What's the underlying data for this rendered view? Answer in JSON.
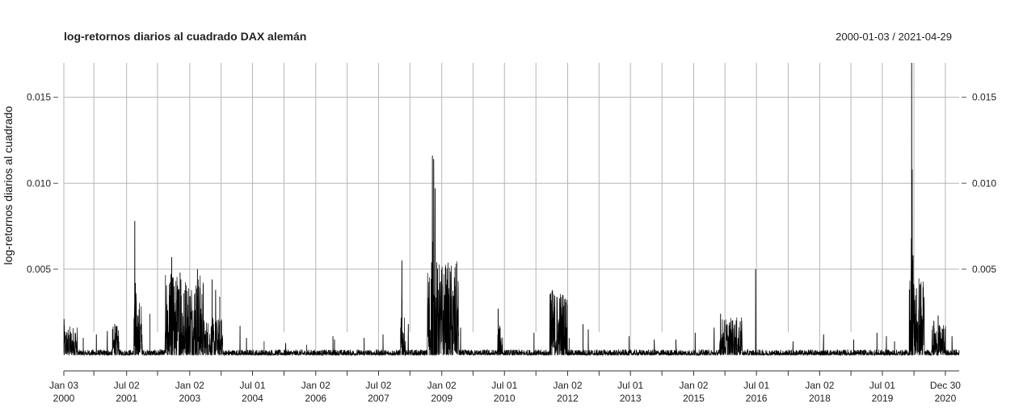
{
  "chart_data": {
    "type": "line",
    "title": "log-retornos diarios al cuadrado DAX alemán",
    "date_range": "2000-01-03 / 2021-04-29",
    "ylabel": "log-retornos diarios al cuadrado",
    "xlabel": "",
    "ylim": [
      -0.0004,
      0.017
    ],
    "xlim": [
      "2000-01-03",
      "2021-04-29"
    ],
    "grid": true,
    "y_ticks": [
      {
        "value": 0.005,
        "label": "0.005"
      },
      {
        "value": 0.01,
        "label": "0.010"
      },
      {
        "value": 0.015,
        "label": "0.015"
      }
    ],
    "x_ticks": [
      {
        "date": "2000-01-03",
        "line1": "Jan 03",
        "line2": "2000"
      },
      {
        "date": "2000-09-20",
        "line1": "",
        "line2": ""
      },
      {
        "date": "2001-07-02",
        "line1": "Jul 02",
        "line2": "2001"
      },
      {
        "date": "2002-03-28",
        "line1": "",
        "line2": ""
      },
      {
        "date": "2003-01-02",
        "line1": "Jan 02",
        "line2": "2003"
      },
      {
        "date": "2003-10-02",
        "line1": "",
        "line2": ""
      },
      {
        "date": "2004-07-01",
        "line1": "Jul 01",
        "line2": "2004"
      },
      {
        "date": "2005-04-01",
        "line1": "",
        "line2": ""
      },
      {
        "date": "2006-01-02",
        "line1": "Jan 02",
        "line2": "2006"
      },
      {
        "date": "2006-10-02",
        "line1": "",
        "line2": ""
      },
      {
        "date": "2007-07-02",
        "line1": "Jul 02",
        "line2": "2007"
      },
      {
        "date": "2008-03-31",
        "line1": "",
        "line2": ""
      },
      {
        "date": "2009-01-02",
        "line1": "Jan 02",
        "line2": "2009"
      },
      {
        "date": "2009-10-01",
        "line1": "",
        "line2": ""
      },
      {
        "date": "2010-07-01",
        "line1": "Jul 01",
        "line2": "2010"
      },
      {
        "date": "2011-04-01",
        "line1": "",
        "line2": ""
      },
      {
        "date": "2012-01-02",
        "line1": "Jan 02",
        "line2": "2012"
      },
      {
        "date": "2012-10-01",
        "line1": "",
        "line2": ""
      },
      {
        "date": "2013-07-01",
        "line1": "Jul 01",
        "line2": "2013"
      },
      {
        "date": "2014-04-01",
        "line1": "",
        "line2": ""
      },
      {
        "date": "2015-01-02",
        "line1": "Jan 02",
        "line2": "2015"
      },
      {
        "date": "2015-10-01",
        "line1": "",
        "line2": ""
      },
      {
        "date": "2016-07-01",
        "line1": "Jul 01",
        "line2": "2016"
      },
      {
        "date": "2017-04-03",
        "line1": "",
        "line2": ""
      },
      {
        "date": "2018-01-02",
        "line1": "Jan 02",
        "line2": "2018"
      },
      {
        "date": "2018-10-01",
        "line1": "",
        "line2": ""
      },
      {
        "date": "2019-07-01",
        "line1": "Jul 01",
        "line2": "2019"
      },
      {
        "date": "2020-04-01",
        "line1": "",
        "line2": ""
      },
      {
        "date": "2020-12-30",
        "line1": "Dec 30",
        "line2": "2020"
      }
    ],
    "series": [
      {
        "color": "#000000",
        "baseline": 0.00015,
        "peaks": [
          {
            "date": "2000-01-05",
            "value": 0.0021
          },
          {
            "date": "2000-02-15",
            "value": 0.0011
          },
          {
            "date": "2000-04-10",
            "value": 0.0013
          },
          {
            "date": "2000-06-20",
            "value": 0.001
          },
          {
            "date": "2000-10-12",
            "value": 0.0012
          },
          {
            "date": "2001-01-15",
            "value": 0.0014
          },
          {
            "date": "2001-03-20",
            "value": 0.0018
          },
          {
            "date": "2001-04-05",
            "value": 0.0015
          },
          {
            "date": "2001-09-11",
            "value": 0.0078
          },
          {
            "date": "2001-09-17",
            "value": 0.0042
          },
          {
            "date": "2001-09-21",
            "value": 0.0036
          },
          {
            "date": "2001-10-15",
            "value": 0.0012
          },
          {
            "date": "2002-01-20",
            "value": 0.0024
          },
          {
            "date": "2002-06-24",
            "value": 0.0026
          },
          {
            "date": "2002-07-22",
            "value": 0.0047
          },
          {
            "date": "2002-07-29",
            "value": 0.0057
          },
          {
            "date": "2002-08-06",
            "value": 0.0045
          },
          {
            "date": "2002-08-20",
            "value": 0.004
          },
          {
            "date": "2002-09-05",
            "value": 0.0032
          },
          {
            "date": "2002-09-30",
            "value": 0.0038
          },
          {
            "date": "2002-10-10",
            "value": 0.0048
          },
          {
            "date": "2002-10-17",
            "value": 0.0044
          },
          {
            "date": "2002-11-10",
            "value": 0.0036
          },
          {
            "date": "2003-01-20",
            "value": 0.0026
          },
          {
            "date": "2003-02-15",
            "value": 0.0036
          },
          {
            "date": "2003-03-10",
            "value": 0.005
          },
          {
            "date": "2003-03-20",
            "value": 0.004
          },
          {
            "date": "2003-04-10",
            "value": 0.0024
          },
          {
            "date": "2003-05-01",
            "value": 0.0019
          },
          {
            "date": "2003-07-15",
            "value": 0.0044
          },
          {
            "date": "2003-08-15",
            "value": 0.0038
          },
          {
            "date": "2003-09-20",
            "value": 0.0034
          },
          {
            "date": "2003-10-01",
            "value": 0.002
          },
          {
            "date": "2004-03-15",
            "value": 0.0017
          },
          {
            "date": "2004-05-10",
            "value": 0.001
          },
          {
            "date": "2004-10-10",
            "value": 0.0008
          },
          {
            "date": "2005-04-15",
            "value": 0.0007
          },
          {
            "date": "2005-10-15",
            "value": 0.0006
          },
          {
            "date": "2006-06-01",
            "value": 0.0011
          },
          {
            "date": "2006-06-14",
            "value": 0.0009
          },
          {
            "date": "2007-02-27",
            "value": 0.001
          },
          {
            "date": "2007-08-10",
            "value": 0.0012
          },
          {
            "date": "2008-01-21",
            "value": 0.0055
          },
          {
            "date": "2008-01-22",
            "value": 0.0033
          },
          {
            "date": "2008-03-17",
            "value": 0.0018
          },
          {
            "date": "2008-09-15",
            "value": 0.003
          },
          {
            "date": "2008-10-06",
            "value": 0.0054
          },
          {
            "date": "2008-10-13",
            "value": 0.0116
          },
          {
            "date": "2008-10-16",
            "value": 0.0066
          },
          {
            "date": "2008-10-24",
            "value": 0.0114
          },
          {
            "date": "2008-11-06",
            "value": 0.0097
          },
          {
            "date": "2008-11-20",
            "value": 0.0054
          },
          {
            "date": "2008-12-05",
            "value": 0.0038
          },
          {
            "date": "2009-01-15",
            "value": 0.0026
          },
          {
            "date": "2009-03-02",
            "value": 0.003
          },
          {
            "date": "2009-03-23",
            "value": 0.0034
          },
          {
            "date": "2009-04-10",
            "value": 0.0018
          },
          {
            "date": "2009-06-15",
            "value": 0.0016
          },
          {
            "date": "2010-05-07",
            "value": 0.0027
          },
          {
            "date": "2010-05-10",
            "value": 0.0012
          },
          {
            "date": "2011-03-15",
            "value": 0.0013
          },
          {
            "date": "2011-08-04",
            "value": 0.003
          },
          {
            "date": "2011-08-08",
            "value": 0.0036
          },
          {
            "date": "2011-08-10",
            "value": 0.0032
          },
          {
            "date": "2011-08-18",
            "value": 0.003
          },
          {
            "date": "2011-09-12",
            "value": 0.0028
          },
          {
            "date": "2011-10-04",
            "value": 0.0026
          },
          {
            "date": "2011-11-09",
            "value": 0.0024
          },
          {
            "date": "2012-01-15",
            "value": 0.001
          },
          {
            "date": "2012-05-15",
            "value": 0.0018
          },
          {
            "date": "2012-06-29",
            "value": 0.0015
          },
          {
            "date": "2013-06-20",
            "value": 0.0011
          },
          {
            "date": "2014-01-24",
            "value": 0.0009
          },
          {
            "date": "2014-08-01",
            "value": 0.0009
          },
          {
            "date": "2015-01-15",
            "value": 0.0013
          },
          {
            "date": "2015-06-29",
            "value": 0.0016
          },
          {
            "date": "2015-08-24",
            "value": 0.0024
          },
          {
            "date": "2015-12-03",
            "value": 0.002
          },
          {
            "date": "2016-01-07",
            "value": 0.0017
          },
          {
            "date": "2016-02-11",
            "value": 0.0019
          },
          {
            "date": "2016-06-24",
            "value": 0.005
          },
          {
            "date": "2017-05-15",
            "value": 0.0008
          },
          {
            "date": "2018-02-05",
            "value": 0.0012
          },
          {
            "date": "2018-10-25",
            "value": 0.0009
          },
          {
            "date": "2019-05-15",
            "value": 0.0013
          },
          {
            "date": "2019-08-05",
            "value": 0.0011
          },
          {
            "date": "2019-10-15",
            "value": 0.0008
          },
          {
            "date": "2020-02-24",
            "value": 0.0028
          },
          {
            "date": "2020-03-09",
            "value": 0.0068
          },
          {
            "date": "2020-03-12",
            "value": 0.017
          },
          {
            "date": "2020-03-16",
            "value": 0.0108
          },
          {
            "date": "2020-03-18",
            "value": 0.0055
          },
          {
            "date": "2020-03-24",
            "value": 0.0058
          },
          {
            "date": "2020-04-06",
            "value": 0.0032
          },
          {
            "date": "2020-05-15",
            "value": 0.0015
          },
          {
            "date": "2020-06-11",
            "value": 0.0018
          },
          {
            "date": "2020-09-21",
            "value": 0.002
          },
          {
            "date": "2020-10-28",
            "value": 0.0023
          },
          {
            "date": "2021-02-26",
            "value": 0.0011
          }
        ],
        "volatile_periods": [
          {
            "start": "2000-01-03",
            "end": "2000-04-30",
            "level": 0.0008
          },
          {
            "start": "2001-03-01",
            "end": "2001-04-30",
            "level": 0.0008
          },
          {
            "start": "2001-09-01",
            "end": "2001-11-15",
            "level": 0.0015
          },
          {
            "start": "2002-06-01",
            "end": "2003-04-30",
            "level": 0.0022
          },
          {
            "start": "2003-05-01",
            "end": "2003-10-15",
            "level": 0.001
          },
          {
            "start": "2008-01-10",
            "end": "2008-02-20",
            "level": 0.001
          },
          {
            "start": "2008-09-01",
            "end": "2009-05-30",
            "level": 0.0025
          },
          {
            "start": "2010-05-01",
            "end": "2010-06-15",
            "level": 0.0008
          },
          {
            "start": "2011-08-01",
            "end": "2011-12-31",
            "level": 0.0018
          },
          {
            "start": "2015-08-15",
            "end": "2016-03-01",
            "level": 0.001
          },
          {
            "start": "2020-02-20",
            "end": "2020-06-30",
            "level": 0.0022
          },
          {
            "start": "2020-09-01",
            "end": "2020-12-31",
            "level": 0.0008
          }
        ]
      }
    ]
  }
}
